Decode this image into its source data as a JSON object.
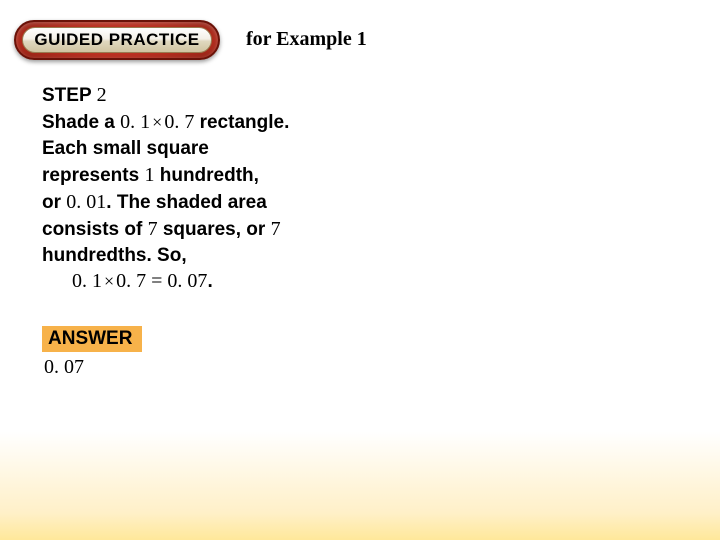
{
  "badge": {
    "label": "GUIDED PRACTICE"
  },
  "header": {
    "for_example": "for Example 1"
  },
  "step": {
    "label": "STEP",
    "number": "2",
    "line1a": "Shade a ",
    "line1b": "0. 1",
    "line1c": "0. 7",
    "line1d": " rectangle.",
    "line2": "Each small square",
    "line3a": "represents ",
    "line3b": "1",
    "line3c": " hundredth,",
    "line4a": "or ",
    "line4b": "0. 01",
    "line4c": ". The shaded area",
    "line5a": "consists of ",
    "line5b": "7",
    "line5c": " squares, or ",
    "line5d": "7",
    "line6": "hundredths. So,",
    "eq_a": "0. 1",
    "eq_b": "0. 7 = 0. 07",
    "eq_c": "."
  },
  "answer": {
    "label": "ANSWER",
    "value": "0. 07"
  },
  "colors": {
    "badge_outer": "#b82e1f",
    "badge_border": "#6a1208",
    "answer_bg": "#f7b24a"
  }
}
